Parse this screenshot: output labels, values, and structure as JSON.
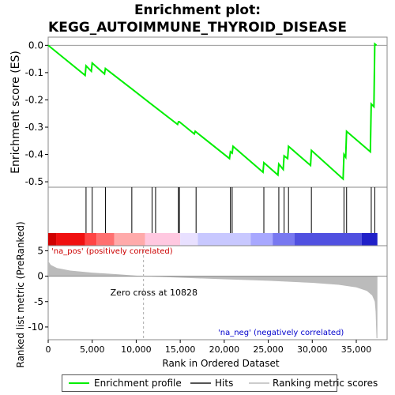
{
  "chart_data": {
    "type": "line",
    "title_line1": "Enrichment plot:",
    "title_line2": "KEGG_AUTOIMMUNE_THYROID_DISEASE",
    "top_panel": {
      "ylabel": "Enrichment score (ES)",
      "ylim": [
        -0.52,
        0.03
      ],
      "yticks": [
        "0.0",
        "-0.1",
        "-0.2",
        "-0.3",
        "-0.4",
        "-0.5"
      ],
      "ytick_values": [
        0.0,
        -0.1,
        -0.2,
        -0.3,
        -0.4,
        -0.5
      ],
      "series": [
        {
          "name": "Enrichment profile",
          "color": "#00ee00",
          "x": [
            0,
            4200,
            4300,
            4900,
            5000,
            6400,
            6500,
            9500,
            11500,
            14700,
            14800,
            14900,
            16600,
            16700,
            20600,
            20700,
            20900,
            21000,
            24400,
            24500,
            26100,
            26200,
            26700,
            26800,
            27200,
            27300,
            29800,
            29900,
            33500,
            33600,
            33800,
            33900,
            36600,
            36700,
            37000,
            37100,
            37300
          ],
          "y": [
            0.0,
            -0.11,
            -0.075,
            -0.095,
            -0.065,
            -0.105,
            -0.085,
            -0.16,
            -0.21,
            -0.29,
            -0.28,
            -0.28,
            -0.325,
            -0.315,
            -0.415,
            -0.39,
            -0.395,
            -0.37,
            -0.465,
            -0.43,
            -0.475,
            -0.435,
            -0.455,
            -0.405,
            -0.415,
            -0.37,
            -0.44,
            -0.385,
            -0.49,
            -0.4,
            -0.41,
            -0.315,
            -0.39,
            -0.215,
            -0.225,
            0.005,
            0.0
          ]
        }
      ]
    },
    "hits_panel": {
      "hits": [
        4300,
        5000,
        6500,
        9500,
        11800,
        12200,
        14800,
        14900,
        16800,
        20700,
        20900,
        24500,
        26200,
        26800,
        27300,
        29900,
        33600,
        33900,
        36700,
        37100
      ],
      "hit_color": "#000000"
    },
    "ranking_bar": {
      "colors": [
        "#d00000",
        "#f01010",
        "#ff4444",
        "#ff7070",
        "#ffaaaa",
        "#ffc8e0",
        "#e8e0ff",
        "#c8c8ff",
        "#a8a8ff",
        "#7878f0",
        "#5050e0",
        "#2020c8"
      ],
      "segments_x_end": [
        900,
        4200,
        5500,
        7500,
        11000,
        15000,
        17000,
        23000,
        25500,
        28000,
        35600,
        37400
      ]
    },
    "bottom_panel": {
      "ylabel": "Ranked list metric (PreRanked)",
      "ylim": [
        -12.5,
        6
      ],
      "yticks": [
        "5",
        "0",
        "-5",
        "-10"
      ],
      "ytick_values": [
        5,
        0,
        -5,
        -10
      ],
      "curve_x": [
        0,
        300,
        1000,
        2500,
        5000,
        8000,
        10828,
        15000,
        20000,
        25000,
        30000,
        33000,
        35000,
        36200,
        36800,
        37100,
        37200,
        37300,
        37400
      ],
      "curve_y": [
        3.0,
        2.2,
        1.6,
        1.1,
        0.7,
        0.35,
        0.0,
        -0.3,
        -0.6,
        -0.9,
        -1.3,
        -1.7,
        -2.2,
        -2.9,
        -3.8,
        -5.0,
        -7.0,
        -12.2,
        -12.2
      ],
      "fill_color": "#bbbbbb",
      "zero_cross_x": 10828,
      "zero_cross_label": "Zero cross at 10828",
      "pos_label": "'na_pos' (positively correlated)",
      "neg_label": "'na_neg' (negatively correlated)",
      "pos_color": "#cc0000",
      "neg_color": "#0000cc"
    },
    "x_axis": {
      "label": "Rank in Ordered Dataset",
      "xlim": [
        0,
        38500
      ],
      "ticks": [
        "0",
        "5,000",
        "10,000",
        "15,000",
        "20,000",
        "25,000",
        "30,000",
        "35,000"
      ],
      "tick_values": [
        0,
        5000,
        10000,
        15000,
        20000,
        25000,
        30000,
        35000
      ]
    },
    "legend": {
      "placement": "bottom",
      "items": [
        {
          "label": "Enrichment profile",
          "color": "#00ee00"
        },
        {
          "label": "Hits",
          "color": "#000000"
        },
        {
          "label": "Ranking metric scores",
          "color": "#cccccc"
        }
      ]
    }
  }
}
